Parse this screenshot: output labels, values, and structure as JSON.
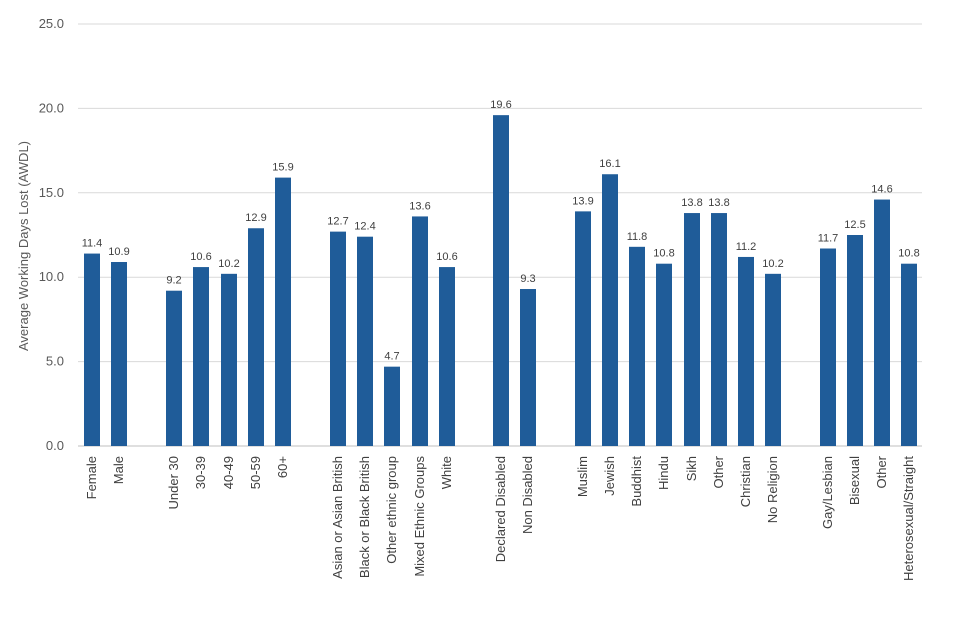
{
  "chart_data": {
    "type": "bar",
    "title": "",
    "xlabel": "",
    "ylabel": "Average Working Days Lost (AWDL)",
    "ylim": [
      0,
      25
    ],
    "yticks": [
      "0.0",
      "5.0",
      "10.0",
      "15.0",
      "20.0",
      "25.0"
    ],
    "grid": true,
    "bar_color": "#1f5c99",
    "series": [
      {
        "name": "AWDL",
        "points": [
          {
            "category": "Female",
            "value": 11.4,
            "label": "11.4"
          },
          {
            "category": "Male",
            "value": 10.9,
            "label": "10.9"
          },
          {
            "category": "Under 30",
            "value": 9.2,
            "label": "9.2"
          },
          {
            "category": "30-39",
            "value": 10.6,
            "label": "10.6"
          },
          {
            "category": "40-49",
            "value": 10.2,
            "label": "10.2"
          },
          {
            "category": "50-59",
            "value": 12.9,
            "label": "12.9"
          },
          {
            "category": "60+",
            "value": 15.9,
            "label": "15.9"
          },
          {
            "category": "Asian or Asian British",
            "value": 12.7,
            "label": "12.7"
          },
          {
            "category": "Black or Black British",
            "value": 12.4,
            "label": "12.4"
          },
          {
            "category": "Other ethnic group",
            "value": 4.7,
            "label": "4.7"
          },
          {
            "category": "Mixed Ethnic Groups",
            "value": 13.6,
            "label": "13.6"
          },
          {
            "category": "White",
            "value": 10.6,
            "label": "10.6"
          },
          {
            "category": "Declared Disabled",
            "value": 19.6,
            "label": "19.6"
          },
          {
            "category": "Non Disabled",
            "value": 9.3,
            "label": "9.3"
          },
          {
            "category": "Muslim",
            "value": 13.9,
            "label": "13.9"
          },
          {
            "category": "Jewish",
            "value": 16.1,
            "label": "16.1"
          },
          {
            "category": "Buddhist",
            "value": 11.8,
            "label": "11.8"
          },
          {
            "category": "Hindu",
            "value": 10.8,
            "label": "10.8"
          },
          {
            "category": "Sikh",
            "value": 13.8,
            "label": "13.8"
          },
          {
            "category": "Other",
            "value": 13.8,
            "label": "13.8"
          },
          {
            "category": "Christian",
            "value": 11.2,
            "label": "11.2"
          },
          {
            "category": "No Religion",
            "value": 10.2,
            "label": "10.2"
          },
          {
            "category": "Gay/Lesbian",
            "value": 11.7,
            "label": "11.7"
          },
          {
            "category": "Bisexual",
            "value": 12.5,
            "label": "12.5"
          },
          {
            "category": "Other",
            "value": 14.6,
            "label": "14.6"
          },
          {
            "category": "Heterosexual/Straight",
            "value": 10.8,
            "label": "10.8"
          }
        ]
      }
    ]
  }
}
